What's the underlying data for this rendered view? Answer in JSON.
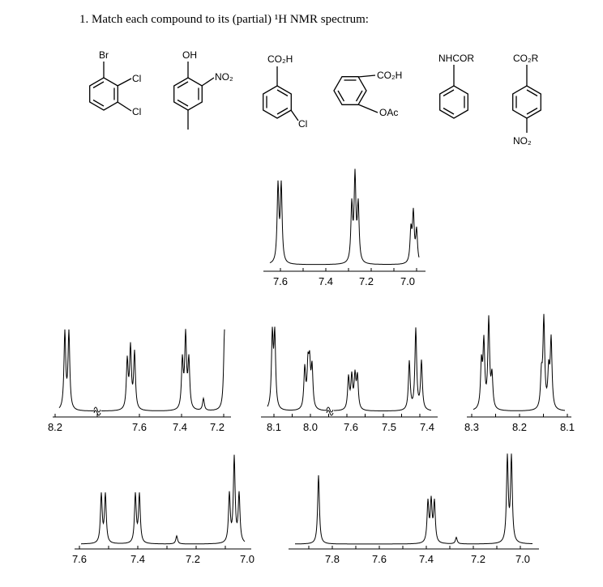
{
  "question": "1. Match each compound to its (partial) ¹H NMR spectrum:",
  "compounds": [
    {
      "substituents": [
        "Br",
        "Cl",
        "Cl"
      ]
    },
    {
      "substituents": [
        "OH",
        "NO₂"
      ]
    },
    {
      "substituents": [
        "CO₂H",
        "Cl"
      ]
    },
    {
      "substituents": [
        "CO₂H",
        "OAc"
      ]
    },
    {
      "substituents": [
        "NHCOR"
      ]
    },
    {
      "substituents": [
        "CO₂R",
        "NO₂"
      ]
    }
  ],
  "spectra": [
    {
      "ticks": [
        "7.6",
        "7.4",
        "7.2",
        "7.0"
      ]
    },
    {
      "ticks": [
        "8.2",
        "7.6",
        "7.4",
        "7.2"
      ]
    },
    {
      "ticks": [
        "8.1",
        "8.0",
        "7.6",
        "7.5",
        "7.4"
      ]
    },
    {
      "ticks": [
        "8.3",
        "8.2",
        "8.1"
      ]
    },
    {
      "ticks": [
        "7.6",
        "7.4",
        "7.2",
        "7.0"
      ]
    },
    {
      "ticks": [
        "7.8",
        "7.6",
        "7.4",
        "7.2",
        "7.0"
      ]
    }
  ]
}
